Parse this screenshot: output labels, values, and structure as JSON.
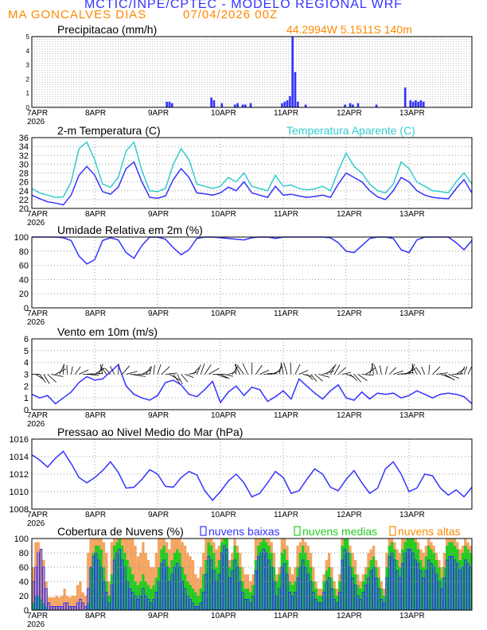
{
  "header": {
    "title": "MCTIC/INPE/CPTEC - MODELO REGIONAL WRF",
    "station": "MA GONCALVES DIAS",
    "run": "07/04/2026 00Z"
  },
  "colors": {
    "blue": "#3333ff",
    "cyan": "#33cccc",
    "orange": "#ff8800",
    "green": "#22cc22",
    "orange_fill": "#f4a460"
  },
  "x_axis": {
    "first_label": "7APR",
    "year": "2026",
    "labels": [
      "7APR",
      "8APR",
      "9APR",
      "10APR",
      "11APR",
      "12APR",
      "13APR"
    ]
  },
  "chart_data": [
    {
      "id": "precip",
      "type": "bar",
      "title": "Precipitacao (mm/h)",
      "info": "44.2994W 5.1511S 140m",
      "hours": [
        51,
        52,
        53,
        68,
        69,
        72,
        77,
        78,
        80,
        81,
        83,
        95,
        96,
        97,
        98,
        99,
        100,
        101,
        104,
        119,
        121,
        122,
        124,
        131,
        142,
        144,
        145,
        146,
        147,
        148,
        149
      ],
      "values": [
        0.4,
        0.4,
        0.3,
        0.7,
        0.5,
        0.3,
        0.2,
        0.3,
        0.2,
        0.2,
        0.3,
        0.3,
        0.4,
        0.5,
        0.8,
        5.0,
        2.5,
        0.4,
        0.2,
        0.2,
        0.3,
        0.2,
        0.3,
        0.2,
        1.4,
        0.5,
        0.4,
        0.5,
        0.4,
        0.5,
        0.4
      ],
      "ylim": [
        0,
        5
      ]
    },
    {
      "id": "temp",
      "type": "line",
      "title": "2-m Temperatura (C)",
      "legend": "Temperatura Aparente (C)",
      "ylim": [
        20,
        36
      ],
      "yticks": [
        20,
        22,
        24,
        26,
        28,
        30,
        32,
        34,
        36
      ],
      "series": [
        {
          "name": "Temperatura (C)",
          "x": [
            0,
            3,
            6,
            9,
            12,
            15,
            18,
            21,
            24,
            27,
            30,
            33,
            36,
            39,
            42,
            45,
            48,
            51,
            54,
            57,
            60,
            63,
            66,
            69,
            72,
            75,
            78,
            81,
            84,
            87,
            90,
            93,
            96,
            99,
            102,
            105,
            108,
            111,
            114,
            117,
            120,
            123,
            126,
            129,
            132,
            135,
            138,
            141,
            144,
            147,
            150,
            153,
            156,
            159,
            162,
            165,
            168
          ],
          "values": [
            23,
            22.2,
            21.5,
            21.2,
            20.8,
            23,
            27.5,
            29.5,
            27.5,
            23.8,
            23.2,
            24.8,
            29,
            30.5,
            26,
            22.5,
            22.3,
            22.8,
            26.5,
            29,
            27,
            23.5,
            23.3,
            23,
            23.5,
            24.8,
            24,
            26,
            23.5,
            23,
            22.5,
            25,
            23,
            23.2,
            22.8,
            22.5,
            22.7,
            23,
            22.5,
            25.5,
            28,
            27,
            26,
            24,
            22.6,
            22,
            24,
            27,
            26,
            24,
            23,
            22.5,
            22.3,
            22.2,
            24.5,
            26.5,
            23.5
          ]
        },
        {
          "name": "Temperatura Aparente (C)",
          "x": [
            0,
            3,
            6,
            9,
            12,
            15,
            18,
            21,
            24,
            27,
            30,
            33,
            36,
            39,
            42,
            45,
            48,
            51,
            54,
            57,
            60,
            63,
            66,
            69,
            72,
            75,
            78,
            81,
            84,
            87,
            90,
            93,
            96,
            99,
            102,
            105,
            108,
            111,
            114,
            117,
            120,
            123,
            126,
            129,
            132,
            135,
            138,
            141,
            144,
            147,
            150,
            153,
            156,
            159,
            162,
            165,
            168
          ],
          "values": [
            24.5,
            23.5,
            23,
            22.5,
            22.6,
            26,
            33.5,
            35,
            31,
            25.5,
            24.8,
            27,
            33,
            35,
            28.5,
            24,
            23.8,
            24.5,
            30,
            33.5,
            31,
            25.5,
            25,
            24.5,
            25,
            27,
            26,
            28,
            25,
            24.5,
            24,
            27.5,
            25,
            25.3,
            24.5,
            24.2,
            24.4,
            25,
            24,
            28.5,
            32.5,
            29.5,
            28,
            25.5,
            24,
            23.5,
            25.5,
            30.5,
            29,
            26,
            25,
            24,
            23.8,
            23.5,
            26,
            28,
            25.5
          ]
        }
      ]
    },
    {
      "id": "humidity",
      "type": "line",
      "title": "Umidade Relativa em 2m (%)",
      "ylim": [
        0,
        100
      ],
      "yticks": [
        0,
        20,
        40,
        60,
        80,
        100
      ],
      "series": [
        {
          "name": "Umidade Relativa (%)",
          "x": [
            0,
            3,
            6,
            9,
            12,
            15,
            18,
            21,
            24,
            27,
            30,
            33,
            36,
            39,
            42,
            45,
            48,
            51,
            54,
            57,
            60,
            63,
            66,
            69,
            72,
            75,
            78,
            81,
            84,
            87,
            90,
            93,
            96,
            99,
            102,
            105,
            108,
            111,
            114,
            117,
            120,
            123,
            126,
            129,
            132,
            135,
            138,
            141,
            144,
            147,
            150,
            153,
            156,
            159,
            162,
            165,
            168
          ],
          "values": [
            100,
            100,
            100,
            100,
            99,
            95,
            73,
            62,
            68,
            95,
            99,
            96,
            78,
            70,
            88,
            100,
            100,
            97,
            85,
            75,
            82,
            98,
            100,
            100,
            99,
            98,
            97,
            96,
            99,
            100,
            100,
            98,
            100,
            100,
            100,
            100,
            100,
            100,
            99,
            92,
            80,
            78,
            88,
            98,
            100,
            100,
            98,
            82,
            78,
            96,
            100,
            100,
            100,
            100,
            92,
            82,
            95
          ]
        }
      ]
    },
    {
      "id": "wind",
      "type": "line",
      "title": "Vento em 10m (m/s)",
      "ylim": [
        0,
        6
      ],
      "yticks": [
        0,
        1,
        2,
        3,
        4,
        5,
        6
      ],
      "series": [
        {
          "name": "Vento (m/s)",
          "x": [
            0,
            3,
            6,
            9,
            12,
            15,
            18,
            21,
            24,
            27,
            30,
            33,
            36,
            39,
            42,
            45,
            48,
            51,
            54,
            57,
            60,
            63,
            66,
            69,
            72,
            75,
            78,
            81,
            84,
            87,
            90,
            93,
            96,
            99,
            102,
            105,
            108,
            111,
            114,
            117,
            120,
            123,
            126,
            129,
            132,
            135,
            138,
            141,
            144,
            147,
            150,
            153,
            156,
            159,
            162,
            165,
            168
          ],
          "values": [
            1.3,
            1.0,
            1.2,
            0.5,
            1.0,
            1.5,
            2.3,
            2.8,
            2.5,
            2.6,
            3.2,
            3.8,
            2.0,
            1.3,
            1.0,
            0.8,
            1.2,
            2.3,
            2.5,
            2.1,
            1.3,
            1.1,
            1.7,
            2.4,
            0.6,
            1.5,
            2.0,
            1.2,
            1.9,
            1.7,
            0.7,
            1.1,
            1.6,
            0.9,
            2.6,
            2.0,
            1.4,
            0.9,
            1.6,
            2.1,
            1.0,
            0.8,
            1.5,
            0.9,
            1.4,
            1.3,
            1.4,
            1.0,
            1.2,
            1.6,
            1.3,
            1.0,
            1.3,
            1.4,
            1.3,
            1.1,
            0.5
          ]
        }
      ]
    },
    {
      "id": "pressure",
      "type": "line",
      "title": "Pressao ao Nivel Medio do Mar (hPa)",
      "ylim": [
        1008,
        1016
      ],
      "yticks": [
        1008,
        1010,
        1012,
        1014,
        1016
      ],
      "series": [
        {
          "name": "Pressao (hPa)",
          "x": [
            0,
            3,
            6,
            9,
            12,
            15,
            18,
            21,
            24,
            27,
            30,
            33,
            36,
            39,
            42,
            45,
            48,
            51,
            54,
            57,
            60,
            63,
            66,
            69,
            72,
            75,
            78,
            81,
            84,
            87,
            90,
            93,
            96,
            99,
            102,
            105,
            108,
            111,
            114,
            117,
            120,
            123,
            126,
            129,
            132,
            135,
            138,
            141,
            144,
            147,
            150,
            153,
            156,
            159,
            162,
            165,
            168
          ],
          "values": [
            1014.2,
            1013.6,
            1012.8,
            1013.8,
            1014.6,
            1013.2,
            1011.6,
            1011.0,
            1011.6,
            1012.4,
            1013.4,
            1012.2,
            1010.4,
            1010.5,
            1011.4,
            1012.5,
            1012.0,
            1010.6,
            1010.5,
            1011.6,
            1012.3,
            1011.9,
            1010.1,
            1009.0,
            1010.0,
            1011.2,
            1012.0,
            1011.0,
            1009.4,
            1009.8,
            1011.0,
            1012.3,
            1011.6,
            1009.8,
            1010.1,
            1011.4,
            1012.6,
            1012.0,
            1010.5,
            1010.1,
            1011.4,
            1012.4,
            1011.0,
            1009.8,
            1010.4,
            1012.6,
            1013.4,
            1012.0,
            1010.0,
            1010.4,
            1012.0,
            1011.8,
            1010.4,
            1009.6,
            1010.2,
            1009.4,
            1010.5
          ]
        }
      ]
    },
    {
      "id": "clouds",
      "type": "bar",
      "title": "Cobertura de Nuvens (%)",
      "legend": [
        "nuvens baixas",
        "nuvens medias",
        "nuvens altas"
      ],
      "ylim": [
        0,
        100
      ],
      "yticks": [
        0,
        20,
        40,
        60,
        80,
        100
      ],
      "high": [
        60,
        95,
        95,
        85,
        70,
        40,
        18,
        18,
        18,
        20,
        18,
        20,
        30,
        20,
        18,
        20,
        20,
        35,
        40,
        25,
        20,
        80,
        100,
        100,
        100,
        100,
        100,
        95,
        80,
        40,
        95,
        100,
        100,
        100,
        100,
        100,
        100,
        100,
        100,
        90,
        75,
        80,
        95,
        80,
        70,
        60,
        60,
        80,
        100,
        100,
        100,
        95,
        85,
        100,
        100,
        100,
        100,
        95,
        90,
        80,
        75,
        70,
        50,
        45,
        60,
        80,
        100,
        100,
        100,
        95,
        85,
        90,
        100,
        100,
        100,
        70,
        80,
        100,
        90,
        80,
        60,
        50,
        50,
        40,
        50,
        100,
        100,
        100,
        100,
        100,
        100,
        95,
        80,
        50,
        60,
        100,
        100,
        90,
        60,
        50,
        60,
        90,
        95,
        100,
        95,
        90,
        80,
        60,
        40,
        30,
        30,
        50,
        70,
        80,
        60,
        40,
        30,
        50,
        100,
        100,
        100,
        90,
        80,
        70,
        50,
        40,
        50,
        60,
        80,
        85,
        90,
        70,
        60,
        40,
        30,
        80,
        100,
        100,
        95,
        85,
        80,
        100,
        100,
        100,
        100,
        100,
        100,
        95,
        85,
        80,
        90,
        100,
        95,
        90,
        80,
        70,
        60,
        80,
        100,
        100,
        100,
        100,
        95,
        85,
        90,
        100,
        95,
        90
      ],
      "medium": [
        10,
        20,
        20,
        15,
        10,
        5,
        0,
        0,
        0,
        0,
        0,
        0,
        0,
        0,
        0,
        0,
        0,
        0,
        0,
        0,
        0,
        10,
        60,
        80,
        90,
        90,
        85,
        60,
        40,
        20,
        50,
        90,
        95,
        100,
        90,
        80,
        70,
        60,
        50,
        40,
        35,
        40,
        50,
        40,
        35,
        30,
        35,
        45,
        60,
        85,
        90,
        80,
        60,
        70,
        80,
        85,
        80,
        60,
        50,
        40,
        35,
        30,
        25,
        20,
        30,
        50,
        70,
        95,
        90,
        80,
        60,
        70,
        95,
        100,
        100,
        60,
        70,
        90,
        80,
        60,
        40,
        30,
        30,
        25,
        35,
        70,
        90,
        95,
        100,
        95,
        90,
        80,
        60,
        40,
        50,
        80,
        85,
        70,
        40,
        35,
        40,
        60,
        80,
        90,
        80,
        70,
        60,
        40,
        30,
        20,
        20,
        40,
        55,
        60,
        45,
        30,
        20,
        40,
        90,
        100,
        100,
        80,
        60,
        50,
        35,
        30,
        40,
        50,
        60,
        70,
        75,
        60,
        45,
        30,
        20,
        60,
        90,
        95,
        85,
        70,
        60,
        85,
        95,
        100,
        100,
        100,
        95,
        85,
        70,
        60,
        75,
        90,
        85,
        80,
        70,
        60,
        45,
        60,
        90,
        95,
        95,
        90,
        85,
        70,
        80,
        90,
        85,
        80
      ],
      "low": [
        40,
        60,
        80,
        85,
        60,
        30,
        10,
        5,
        5,
        5,
        5,
        5,
        10,
        10,
        5,
        5,
        5,
        10,
        15,
        10,
        5,
        30,
        60,
        75,
        80,
        70,
        60,
        40,
        25,
        10,
        35,
        70,
        80,
        85,
        70,
        60,
        40,
        30,
        25,
        20,
        15,
        20,
        30,
        20,
        15,
        10,
        15,
        25,
        40,
        65,
        70,
        60,
        40,
        50,
        60,
        65,
        60,
        40,
        30,
        20,
        15,
        10,
        5,
        5,
        10,
        25,
        50,
        75,
        70,
        55,
        40,
        50,
        80,
        90,
        85,
        45,
        55,
        70,
        60,
        40,
        25,
        15,
        15,
        10,
        20,
        55,
        75,
        80,
        85,
        80,
        70,
        60,
        40,
        20,
        30,
        60,
        65,
        50,
        25,
        20,
        25,
        45,
        60,
        70,
        60,
        50,
        40,
        25,
        15,
        10,
        10,
        25,
        40,
        45,
        30,
        15,
        10,
        25,
        70,
        85,
        80,
        60,
        45,
        35,
        20,
        15,
        25,
        35,
        45,
        55,
        60,
        45,
        30,
        15,
        10,
        45,
        75,
        80,
        70,
        55,
        45,
        65,
        80,
        85,
        85,
        80,
        70,
        65,
        55,
        45,
        55,
        70,
        65,
        60,
        50,
        40,
        30,
        45,
        70,
        75,
        75,
        70,
        65,
        55,
        60,
        70,
        65,
        60
      ]
    }
  ]
}
